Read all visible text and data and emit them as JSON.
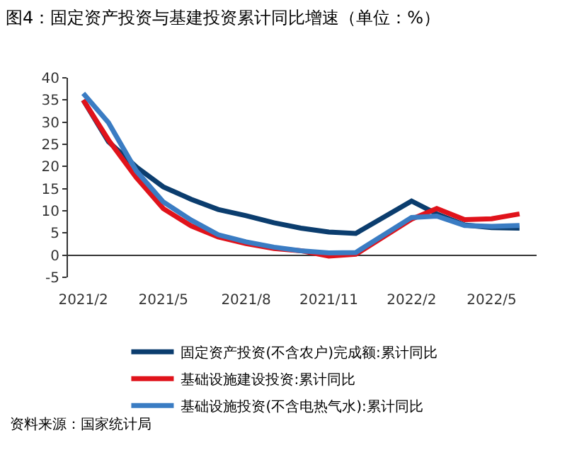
{
  "chart_data": {
    "type": "line",
    "title": "图4：固定资产投资与基建投资累计同比增速（单位：%）",
    "x": [
      "2021-02",
      "2021-03",
      "2021-04",
      "2021-05",
      "2021-06",
      "2021-07",
      "2021-08",
      "2021-09",
      "2021-10",
      "2021-11",
      "2021-12",
      "2022-02",
      "2022-03",
      "2022-04",
      "2022-05",
      "2022-06"
    ],
    "series": [
      {
        "name": "固定资产投资(不含农户)完成额:累计同比",
        "color": "#0b3d6e",
        "values": [
          35,
          25.6,
          19.9,
          15.4,
          12.6,
          10.3,
          8.9,
          7.3,
          6.1,
          5.2,
          4.9,
          12.2,
          9.3,
          6.8,
          6.2,
          6.1
        ]
      },
      {
        "name": "基础设施建设投资:累计同比",
        "color": "#e0131b",
        "values": [
          35,
          26,
          17.5,
          10.5,
          6.6,
          4.1,
          2.6,
          1.5,
          1.0,
          -0.2,
          0.2,
          8.1,
          10.5,
          8.0,
          8.2,
          9.3
        ]
      },
      {
        "name": "基础设施投资(不含电热气水):累计同比",
        "color": "#3a7cc3",
        "values": [
          36.5,
          29.9,
          19.0,
          12.0,
          7.9,
          4.6,
          3.0,
          1.8,
          1.0,
          0.5,
          0.6,
          8.5,
          8.8,
          6.7,
          6.5,
          6.7
        ]
      }
    ],
    "xlim": [
      "2021-01-15",
      "2022-06-20"
    ],
    "xticks": [
      {
        "value": "2021-02",
        "label": "2021/2"
      },
      {
        "value": "2021-05",
        "label": "2021/5"
      },
      {
        "value": "2021-08",
        "label": "2021/8"
      },
      {
        "value": "2021-11",
        "label": "2021/11"
      },
      {
        "value": "2022-02",
        "label": "2022/2"
      },
      {
        "value": "2022-05",
        "label": "2022/5"
      }
    ],
    "ylim": [
      -5,
      40
    ],
    "yticks": [
      -5,
      0,
      5,
      10,
      15,
      20,
      25,
      30,
      35,
      40
    ],
    "legend": "bottom",
    "marker": "none",
    "line_style": "solid",
    "annotations": [
      "资料来源：国家统计局"
    ]
  }
}
